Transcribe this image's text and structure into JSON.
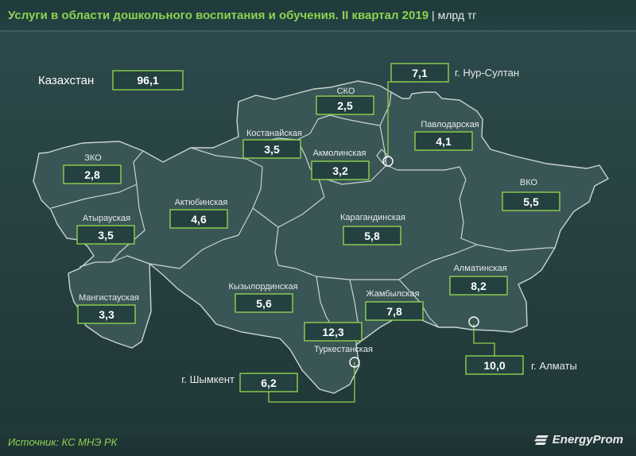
{
  "header": {
    "title": "Услуги в области дошкольного воспитания и обучения. II квартал 2019",
    "unit": "| млрд тг"
  },
  "total": {
    "label": "Казахстан",
    "value": "96,1"
  },
  "regions": [
    {
      "id": "zko",
      "name": "ЗКО",
      "value": "2,8"
    },
    {
      "id": "atyrau",
      "name": "Атырауская",
      "value": "3,5"
    },
    {
      "id": "mangistau",
      "name": "Мангистауская",
      "value": "3,3"
    },
    {
      "id": "aktobe",
      "name": "Актюбинская",
      "value": "4,6"
    },
    {
      "id": "kostanay",
      "name": "Костанайская",
      "value": "3,5"
    },
    {
      "id": "sko",
      "name": "СКО",
      "value": "2,5"
    },
    {
      "id": "akmola",
      "name": "Акмолинская",
      "value": "3,2"
    },
    {
      "id": "pavlodar",
      "name": "Павлодарская",
      "value": "4,1"
    },
    {
      "id": "vko",
      "name": "ВКО",
      "value": "5,5"
    },
    {
      "id": "karaganda",
      "name": "Карагандинская",
      "value": "5,8"
    },
    {
      "id": "kyzylorda",
      "name": "Кызылординская",
      "value": "5,6"
    },
    {
      "id": "zhambyl",
      "name": "Жамбылская",
      "value": "7,8"
    },
    {
      "id": "almaty-region",
      "name": "Алматинская",
      "value": "8,2"
    },
    {
      "id": "turkestan",
      "name": "Туркестанская",
      "value": "12,3"
    }
  ],
  "cities": [
    {
      "id": "nur-sultan",
      "name": "г. Нур-Султан",
      "value": "7,1"
    },
    {
      "id": "almaty",
      "name": "г. Алматы",
      "value": "10,0"
    },
    {
      "id": "shymkent",
      "name": "г. Шымкент",
      "value": "6,2"
    }
  ],
  "footer": {
    "source": "Источник: КС МНЭ РК",
    "brand": "EnergyProm"
  },
  "colors": {
    "background": "#2a4546",
    "region_fill": "#3a5556",
    "region_border": "#c9d3d3",
    "accent": "#8fd14f"
  }
}
